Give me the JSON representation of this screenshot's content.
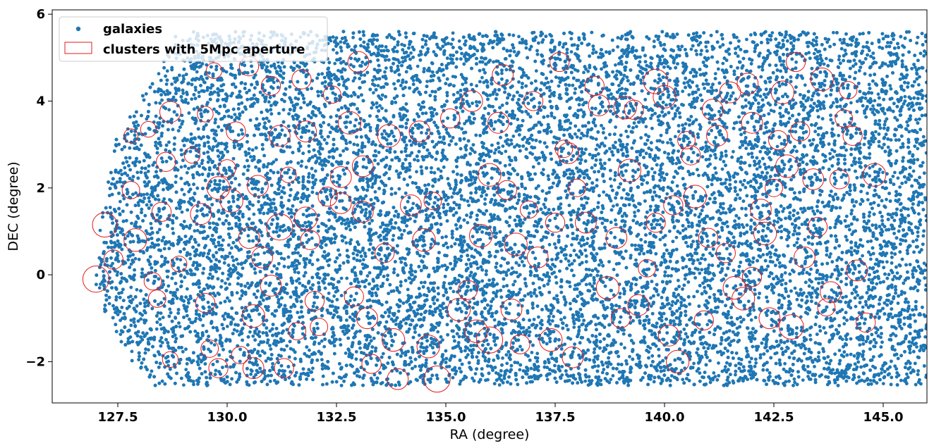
{
  "chart_data": {
    "type": "scatter",
    "xlabel": "RA (degree)",
    "ylabel": "DEC (degree)",
    "xlim": [
      126.0,
      146.0
    ],
    "ylim": [
      -2.95,
      6.1
    ],
    "x_ticks": [
      127.5,
      130.0,
      132.5,
      135.0,
      137.5,
      140.0,
      142.5,
      145.0
    ],
    "x_tick_labels": [
      "127.5",
      "130.0",
      "132.5",
      "135.0",
      "137.5",
      "140.0",
      "142.5",
      "145.0"
    ],
    "y_ticks": [
      -2,
      0,
      2,
      4,
      6
    ],
    "y_tick_labels": [
      "−2",
      "0",
      "2",
      "4",
      "6"
    ],
    "grid": false,
    "legend": {
      "position": "upper-left",
      "entries": [
        "galaxies",
        "clusters with 5Mpc aperture"
      ]
    },
    "colors": {
      "galaxies": "#1f77b4",
      "clusters": "#e41a1c"
    },
    "series": [
      {
        "name": "galaxies",
        "marker": "dot",
        "footprint": {
          "ra_range": [
            127.0,
            146.0
          ],
          "dec_bottom": -2.55,
          "dec_top": 5.6,
          "left_edge_ra_at_dec": [
            [
              -2.55,
              128.3
            ],
            [
              -1.8,
              127.8
            ],
            [
              -1.0,
              127.3
            ],
            [
              0.0,
              127.0
            ],
            [
              1.0,
              127.1
            ],
            [
              2.0,
              127.3
            ],
            [
              3.0,
              127.5
            ],
            [
              3.8,
              127.9
            ],
            [
              4.6,
              128.4
            ],
            [
              5.4,
              128.9
            ]
          ],
          "sample_size_estimate": 26000
        }
      },
      {
        "name": "clusters with 5Mpc aperture",
        "marker": "open-circle",
        "points": [
          {
            "ra": 127.0,
            "dec": -0.1,
            "r": 0.3
          },
          {
            "ra": 127.2,
            "dec": 1.15,
            "r": 0.28
          },
          {
            "ra": 127.4,
            "dec": 0.35,
            "r": 0.22
          },
          {
            "ra": 127.8,
            "dec": 1.95,
            "r": 0.2
          },
          {
            "ra": 127.9,
            "dec": 0.8,
            "r": 0.26
          },
          {
            "ra": 127.8,
            "dec": 3.2,
            "r": 0.16
          },
          {
            "ra": 128.2,
            "dec": 3.35,
            "r": 0.18
          },
          {
            "ra": 128.3,
            "dec": -0.15,
            "r": 0.2
          },
          {
            "ra": 128.4,
            "dec": -0.55,
            "r": 0.2
          },
          {
            "ra": 128.5,
            "dec": 1.45,
            "r": 0.22
          },
          {
            "ra": 128.6,
            "dec": 2.6,
            "r": 0.22
          },
          {
            "ra": 128.7,
            "dec": 3.75,
            "r": 0.24
          },
          {
            "ra": 128.7,
            "dec": -1.95,
            "r": 0.18
          },
          {
            "ra": 128.9,
            "dec": 0.25,
            "r": 0.18
          },
          {
            "ra": 129.2,
            "dec": 2.75,
            "r": 0.18
          },
          {
            "ra": 129.4,
            "dec": 1.4,
            "r": 0.24
          },
          {
            "ra": 129.5,
            "dec": 3.7,
            "r": 0.18
          },
          {
            "ra": 129.5,
            "dec": -0.65,
            "r": 0.22
          },
          {
            "ra": 129.6,
            "dec": -1.7,
            "r": 0.2
          },
          {
            "ra": 129.7,
            "dec": 4.7,
            "r": 0.18
          },
          {
            "ra": 129.8,
            "dec": 2.0,
            "r": 0.26
          },
          {
            "ra": 129.8,
            "dec": -2.15,
            "r": 0.22
          },
          {
            "ra": 130.0,
            "dec": 2.45,
            "r": 0.2
          },
          {
            "ra": 130.1,
            "dec": 1.7,
            "r": 0.26
          },
          {
            "ra": 130.2,
            "dec": 3.3,
            "r": 0.22
          },
          {
            "ra": 130.3,
            "dec": -1.85,
            "r": 0.2
          },
          {
            "ra": 130.5,
            "dec": 0.85,
            "r": 0.24
          },
          {
            "ra": 130.5,
            "dec": 4.8,
            "r": 0.22
          },
          {
            "ra": 130.6,
            "dec": -0.95,
            "r": 0.26
          },
          {
            "ra": 130.7,
            "dec": 2.05,
            "r": 0.24
          },
          {
            "ra": 130.6,
            "dec": -2.15,
            "r": 0.24
          },
          {
            "ra": 130.8,
            "dec": 0.4,
            "r": 0.24
          },
          {
            "ra": 131.0,
            "dec": 4.35,
            "r": 0.22
          },
          {
            "ra": 131.0,
            "dec": -0.25,
            "r": 0.24
          },
          {
            "ra": 131.2,
            "dec": 1.1,
            "r": 0.3
          },
          {
            "ra": 131.2,
            "dec": 3.2,
            "r": 0.24
          },
          {
            "ra": 131.3,
            "dec": -2.15,
            "r": 0.22
          },
          {
            "ra": 131.4,
            "dec": 2.3,
            "r": 0.18
          },
          {
            "ra": 131.6,
            "dec": -1.3,
            "r": 0.2
          },
          {
            "ra": 131.7,
            "dec": 4.5,
            "r": 0.22
          },
          {
            "ra": 131.8,
            "dec": 3.3,
            "r": 0.24
          },
          {
            "ra": 131.8,
            "dec": 1.3,
            "r": 0.26
          },
          {
            "ra": 131.9,
            "dec": 0.8,
            "r": 0.22
          },
          {
            "ra": 132.0,
            "dec": -0.6,
            "r": 0.22
          },
          {
            "ra": 132.1,
            "dec": -1.2,
            "r": 0.2
          },
          {
            "ra": 132.3,
            "dec": 1.8,
            "r": 0.22
          },
          {
            "ra": 132.4,
            "dec": 4.15,
            "r": 0.2
          },
          {
            "ra": 132.6,
            "dec": 2.25,
            "r": 0.24
          },
          {
            "ra": 132.6,
            "dec": 1.65,
            "r": 0.24
          },
          {
            "ra": 132.8,
            "dec": 3.5,
            "r": 0.26
          },
          {
            "ra": 132.9,
            "dec": -0.5,
            "r": 0.22
          },
          {
            "ra": 133.0,
            "dec": 4.9,
            "r": 0.24
          },
          {
            "ra": 133.1,
            "dec": 2.5,
            "r": 0.24
          },
          {
            "ra": 133.1,
            "dec": 1.45,
            "r": 0.24
          },
          {
            "ra": 133.2,
            "dec": -1.0,
            "r": 0.24
          },
          {
            "ra": 133.3,
            "dec": -2.05,
            "r": 0.22
          },
          {
            "ra": 133.6,
            "dec": 0.5,
            "r": 0.22
          },
          {
            "ra": 133.7,
            "dec": 3.2,
            "r": 0.26
          },
          {
            "ra": 133.8,
            "dec": -1.5,
            "r": 0.26
          },
          {
            "ra": 133.9,
            "dec": -2.4,
            "r": 0.24
          },
          {
            "ra": 134.2,
            "dec": 1.6,
            "r": 0.24
          },
          {
            "ra": 134.4,
            "dec": 3.3,
            "r": 0.24
          },
          {
            "ra": 134.5,
            "dec": 0.8,
            "r": 0.26
          },
          {
            "ra": 134.6,
            "dec": -1.65,
            "r": 0.26
          },
          {
            "ra": 134.7,
            "dec": 1.7,
            "r": 0.2
          },
          {
            "ra": 134.8,
            "dec": -2.4,
            "r": 0.3
          },
          {
            "ra": 135.1,
            "dec": 3.6,
            "r": 0.22
          },
          {
            "ra": 135.3,
            "dec": -0.8,
            "r": 0.26
          },
          {
            "ra": 135.5,
            "dec": -0.35,
            "r": 0.22
          },
          {
            "ra": 135.6,
            "dec": 4.0,
            "r": 0.24
          },
          {
            "ra": 135.7,
            "dec": -1.3,
            "r": 0.26
          },
          {
            "ra": 135.8,
            "dec": 0.9,
            "r": 0.26
          },
          {
            "ra": 136.0,
            "dec": 2.3,
            "r": 0.26
          },
          {
            "ra": 136.0,
            "dec": -1.5,
            "r": 0.3
          },
          {
            "ra": 136.2,
            "dec": 3.5,
            "r": 0.24
          },
          {
            "ra": 136.3,
            "dec": 4.6,
            "r": 0.24
          },
          {
            "ra": 136.4,
            "dec": 1.95,
            "r": 0.22
          },
          {
            "ra": 136.5,
            "dec": -0.8,
            "r": 0.24
          },
          {
            "ra": 136.6,
            "dec": 0.7,
            "r": 0.26
          },
          {
            "ra": 136.7,
            "dec": -1.6,
            "r": 0.22
          },
          {
            "ra": 136.9,
            "dec": 1.5,
            "r": 0.2
          },
          {
            "ra": 137.0,
            "dec": 4.0,
            "r": 0.22
          },
          {
            "ra": 137.1,
            "dec": 0.4,
            "r": 0.24
          },
          {
            "ra": 137.4,
            "dec": -1.5,
            "r": 0.26
          },
          {
            "ra": 137.5,
            "dec": 1.2,
            "r": 0.22
          },
          {
            "ra": 137.6,
            "dec": 4.9,
            "r": 0.22
          },
          {
            "ra": 137.7,
            "dec": 2.9,
            "r": 0.2
          },
          {
            "ra": 137.8,
            "dec": 2.8,
            "r": 0.24
          },
          {
            "ra": 137.9,
            "dec": -1.9,
            "r": 0.24
          },
          {
            "ra": 138.0,
            "dec": 2.0,
            "r": 0.2
          },
          {
            "ra": 138.2,
            "dec": 1.2,
            "r": 0.24
          },
          {
            "ra": 138.4,
            "dec": 4.35,
            "r": 0.22
          },
          {
            "ra": 138.5,
            "dec": 3.9,
            "r": 0.24
          },
          {
            "ra": 138.7,
            "dec": -0.3,
            "r": 0.26
          },
          {
            "ra": 138.9,
            "dec": 0.85,
            "r": 0.24
          },
          {
            "ra": 139.0,
            "dec": -1.0,
            "r": 0.22
          },
          {
            "ra": 139.1,
            "dec": 3.85,
            "r": 0.26
          },
          {
            "ra": 139.2,
            "dec": 2.4,
            "r": 0.26
          },
          {
            "ra": 139.3,
            "dec": 3.8,
            "r": 0.22
          },
          {
            "ra": 139.4,
            "dec": -0.7,
            "r": 0.24
          },
          {
            "ra": 139.6,
            "dec": 0.15,
            "r": 0.2
          },
          {
            "ra": 139.8,
            "dec": 4.45,
            "r": 0.28
          },
          {
            "ra": 139.8,
            "dec": 1.2,
            "r": 0.22
          },
          {
            "ra": 140.0,
            "dec": 4.1,
            "r": 0.26
          },
          {
            "ra": 140.1,
            "dec": -1.4,
            "r": 0.24
          },
          {
            "ra": 140.2,
            "dec": 1.6,
            "r": 0.22
          },
          {
            "ra": 140.3,
            "dec": -2.0,
            "r": 0.26
          },
          {
            "ra": 140.5,
            "dec": 3.1,
            "r": 0.2
          },
          {
            "ra": 140.6,
            "dec": 2.75,
            "r": 0.22
          },
          {
            "ra": 140.7,
            "dec": 1.8,
            "r": 0.26
          },
          {
            "ra": 140.9,
            "dec": -1.05,
            "r": 0.22
          },
          {
            "ra": 141.0,
            "dec": 0.85,
            "r": 0.22
          },
          {
            "ra": 141.1,
            "dec": 3.8,
            "r": 0.24
          },
          {
            "ra": 141.2,
            "dec": 3.2,
            "r": 0.24
          },
          {
            "ra": 141.4,
            "dec": 0.5,
            "r": 0.22
          },
          {
            "ra": 141.5,
            "dec": 4.2,
            "r": 0.24
          },
          {
            "ra": 141.6,
            "dec": -0.3,
            "r": 0.26
          },
          {
            "ra": 141.8,
            "dec": -0.55,
            "r": 0.26
          },
          {
            "ra": 141.9,
            "dec": 4.4,
            "r": 0.24
          },
          {
            "ra": 142.0,
            "dec": 3.5,
            "r": 0.24
          },
          {
            "ra": 142.0,
            "dec": -0.05,
            "r": 0.22
          },
          {
            "ra": 142.2,
            "dec": 1.5,
            "r": 0.24
          },
          {
            "ra": 142.3,
            "dec": 0.95,
            "r": 0.26
          },
          {
            "ra": 142.4,
            "dec": -1.0,
            "r": 0.24
          },
          {
            "ra": 142.5,
            "dec": 2.0,
            "r": 0.2
          },
          {
            "ra": 142.6,
            "dec": 3.1,
            "r": 0.22
          },
          {
            "ra": 142.7,
            "dec": 4.2,
            "r": 0.26
          },
          {
            "ra": 142.8,
            "dec": 2.5,
            "r": 0.26
          },
          {
            "ra": 142.9,
            "dec": -1.2,
            "r": 0.28
          },
          {
            "ra": 143.0,
            "dec": 4.9,
            "r": 0.22
          },
          {
            "ra": 143.1,
            "dec": 3.3,
            "r": 0.22
          },
          {
            "ra": 143.2,
            "dec": 0.4,
            "r": 0.24
          },
          {
            "ra": 143.4,
            "dec": 2.2,
            "r": 0.24
          },
          {
            "ra": 143.5,
            "dec": 1.1,
            "r": 0.22
          },
          {
            "ra": 143.6,
            "dec": 4.5,
            "r": 0.26
          },
          {
            "ra": 143.7,
            "dec": -0.75,
            "r": 0.2
          },
          {
            "ra": 143.8,
            "dec": -0.4,
            "r": 0.24
          },
          {
            "ra": 144.0,
            "dec": 2.2,
            "r": 0.22
          },
          {
            "ra": 144.1,
            "dec": 3.6,
            "r": 0.2
          },
          {
            "ra": 144.2,
            "dec": 4.25,
            "r": 0.2
          },
          {
            "ra": 144.3,
            "dec": 3.2,
            "r": 0.22
          },
          {
            "ra": 144.4,
            "dec": 0.1,
            "r": 0.24
          },
          {
            "ra": 144.6,
            "dec": -1.1,
            "r": 0.22
          },
          {
            "ra": 144.8,
            "dec": 2.3,
            "r": 0.26
          }
        ]
      }
    ]
  }
}
